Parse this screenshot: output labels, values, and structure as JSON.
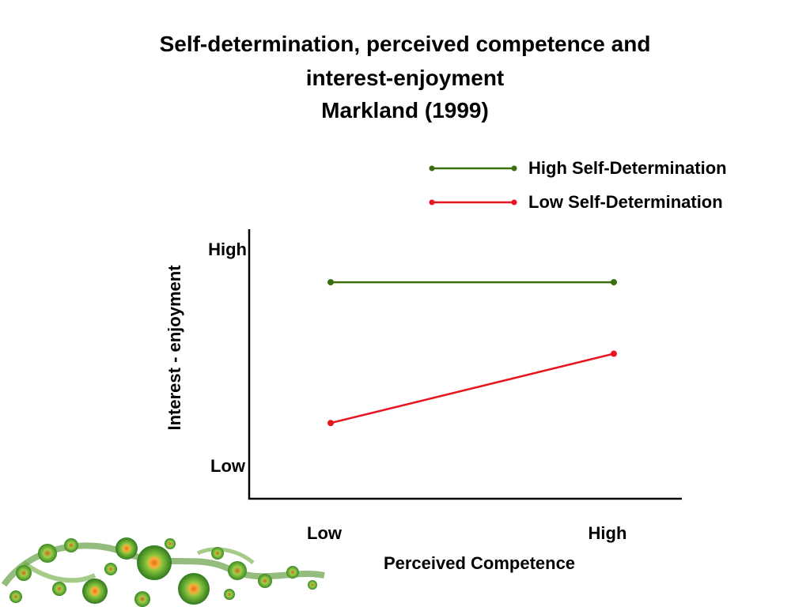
{
  "slide": {
    "title_lines": [
      "Self-determination, perceived competence and",
      "interest-enjoyment",
      "Markland (1999)"
    ]
  },
  "chart_data": {
    "type": "line",
    "title": "Self-determination, perceived competence and interest-enjoyment Markland (1999)",
    "xlabel": "Perceived Competence",
    "ylabel": "Interest - enjoyment",
    "x_tick_labels": [
      "Low",
      "High"
    ],
    "y_tick_labels": [
      "Low",
      "High"
    ],
    "categories": [
      "Low",
      "High"
    ],
    "ylim": [
      0,
      1
    ],
    "grid": false,
    "legend_position": "top-right",
    "series": [
      {
        "name": "High Self-Determination",
        "values": [
          0.85,
          0.85
        ],
        "color": "#3a6e0e"
      },
      {
        "name": "Low Self-Determination",
        "values": [
          0.2,
          0.52
        ],
        "color": "#e8141e"
      }
    ]
  },
  "decoration": {
    "icon": "green-fractal-spiral-decoration"
  }
}
